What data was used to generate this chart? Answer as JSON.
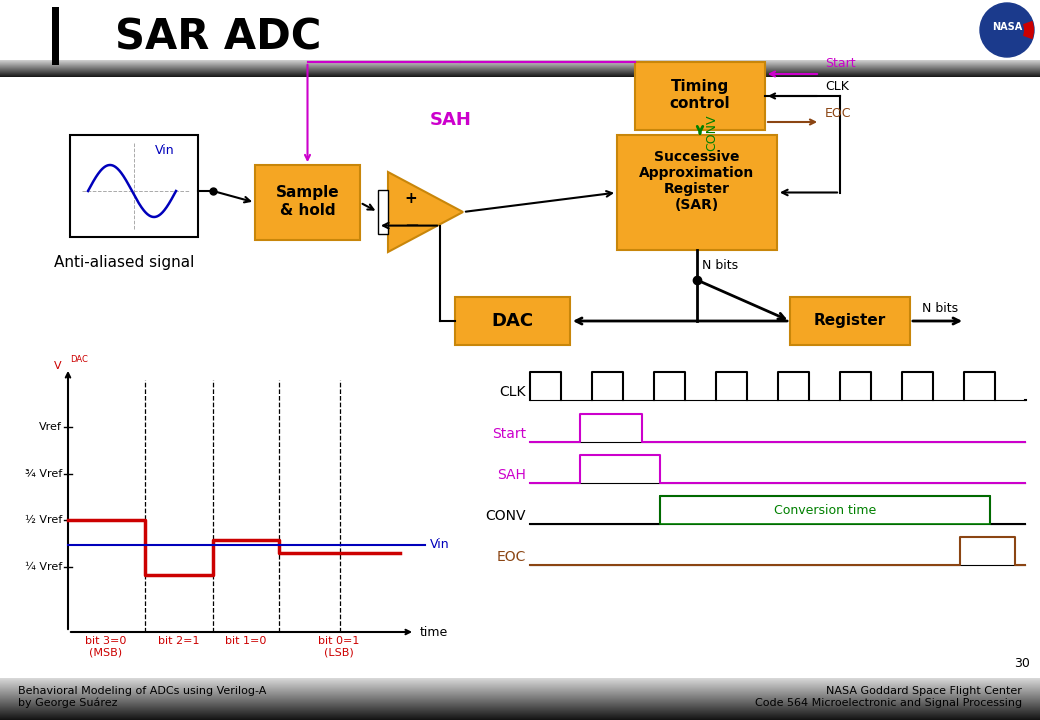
{
  "title": "SAR ADC",
  "bg_color": "#ffffff",
  "orange_box": "#f5a623",
  "orange_border": "#c8860a",
  "magenta": "#cc00cc",
  "green": "#008000",
  "brown": "#8B4513",
  "blue_signal": "#0000bb",
  "red_signal": "#cc0000",
  "footer_left1": "Behavioral Modeling of ADCs using Verilog-A",
  "footer_left2": "by George Suárez",
  "footer_right1": "NASA Goddard Space Flight Center",
  "footer_right2": "Code 564 Microelectronic and Signal Processing",
  "page_num": "30"
}
